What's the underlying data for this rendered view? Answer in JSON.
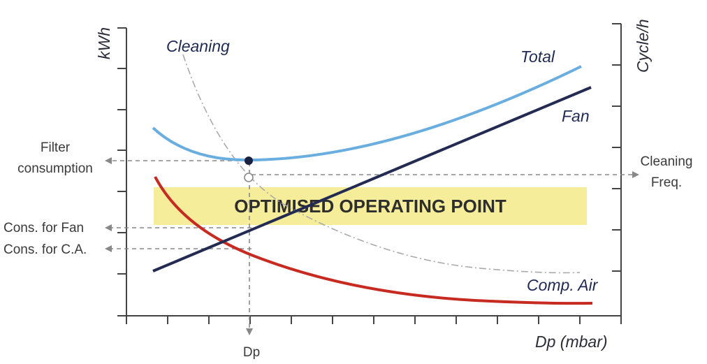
{
  "axes": {
    "left_unit": "kWh",
    "right_unit": "Cycle/h",
    "x_unit": "Dp (mbar)",
    "x_marker": "Dp"
  },
  "curves": {
    "total": "Total",
    "fan": "Fan",
    "cleaning": "Cleaning",
    "comp_air": "Comp. Air"
  },
  "labels": {
    "filter_consumption": [
      "Filter",
      "consumption"
    ],
    "cleaning_freq": [
      "Cleaning",
      "Freq."
    ],
    "cons_fan": "Cons. for Fan",
    "cons_ca": "Cons. for C.A."
  },
  "banner": "OPTIMISED OPERATING POINT",
  "colors": {
    "total": "#6aaee0",
    "fan": "#232b52",
    "comp_air": "#c62a20",
    "cleaning": "#aaaaaa",
    "axis": "#444444",
    "guide": "#888888",
    "banner": "#f3ea87",
    "marker": "#1c2040"
  }
}
